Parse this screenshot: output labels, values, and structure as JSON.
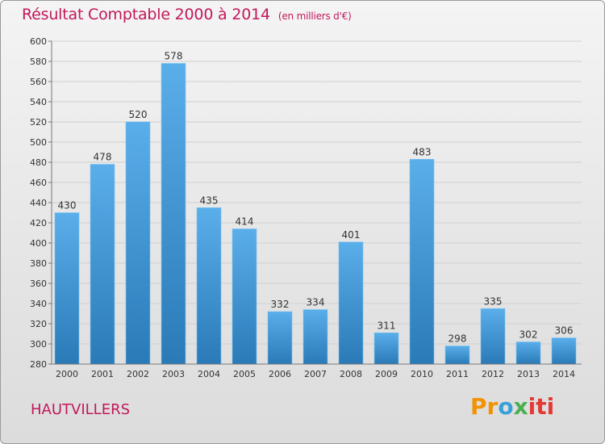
{
  "header": {
    "title": "Résultat Comptable 2000 à 2014",
    "subtitle": "(en milliers d'€)"
  },
  "footer": {
    "commune": "HAUTVILLERS",
    "logo_parts": [
      "Pr",
      "o",
      "x",
      "iti"
    ]
  },
  "chart_data": {
    "type": "bar",
    "title": "Résultat Comptable 2000 à 2014 (en milliers d'€)",
    "xlabel": "",
    "ylabel": "",
    "categories": [
      "2000",
      "2001",
      "2002",
      "2003",
      "2004",
      "2005",
      "2006",
      "2007",
      "2008",
      "2009",
      "2010",
      "2011",
      "2012",
      "2013",
      "2014"
    ],
    "values": [
      430,
      478,
      520,
      578,
      435,
      414,
      332,
      334,
      401,
      311,
      483,
      298,
      335,
      302,
      306
    ],
    "ylim": [
      280,
      600
    ],
    "ytick_step": 20,
    "grid": true,
    "colors": {
      "bar_light": "#5aaeea",
      "bar_dark": "#2a7ab8",
      "grid": "#d0d0d0",
      "text": "#333333"
    }
  }
}
